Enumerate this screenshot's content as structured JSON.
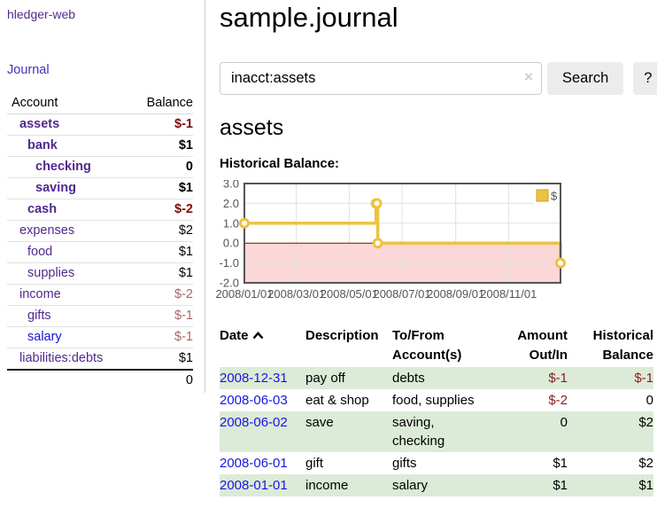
{
  "sidebar": {
    "app_title": "hledger-web",
    "nav": {
      "journal": "Journal"
    },
    "accounts": {
      "headers": {
        "account": "Account",
        "balance": "Balance"
      },
      "rows": [
        {
          "name": "assets",
          "indent": 0,
          "bold": true,
          "balance": "$-1",
          "balance_negative": true,
          "link_color": "purple"
        },
        {
          "name": "bank",
          "indent": 1,
          "bold": true,
          "balance": "$1",
          "balance_negative": false,
          "link_color": "purple"
        },
        {
          "name": "checking",
          "indent": 2,
          "bold": true,
          "balance": "0",
          "balance_negative": false,
          "link_color": "purple"
        },
        {
          "name": "saving",
          "indent": 2,
          "bold": true,
          "balance": "$1",
          "balance_negative": false,
          "link_color": "purple"
        },
        {
          "name": "cash",
          "indent": 1,
          "bold": true,
          "balance": "$-2",
          "balance_negative": true,
          "link_color": "purple"
        },
        {
          "name": "expenses",
          "indent": 0,
          "bold": false,
          "balance": "$2",
          "balance_negative": false,
          "link_color": "purple"
        },
        {
          "name": "food",
          "indent": 1,
          "bold": false,
          "balance": "$1",
          "balance_negative": false,
          "link_color": "purple"
        },
        {
          "name": "supplies",
          "indent": 1,
          "bold": false,
          "balance": "$1",
          "balance_negative": false,
          "link_color": "purple"
        },
        {
          "name": "income",
          "indent": 0,
          "bold": false,
          "balance": "$-2",
          "balance_negative": true,
          "link_color": "purple"
        },
        {
          "name": "gifts",
          "indent": 1,
          "bold": false,
          "balance": "$-1",
          "balance_negative": true,
          "link_color": "purple"
        },
        {
          "name": "salary",
          "indent": 1,
          "bold": false,
          "balance": "$-1",
          "balance_negative": true,
          "link_color": "blue"
        },
        {
          "name": "liabilities:debts",
          "indent": 0,
          "bold": false,
          "balance": "$1",
          "balance_negative": false,
          "link_color": "purple"
        }
      ],
      "total": "0"
    }
  },
  "main": {
    "title": "sample.journal",
    "search": {
      "value": "inacct:assets",
      "clear_icon": "×",
      "search_button": "Search",
      "help_button": "?"
    },
    "heading": "assets",
    "chart_title": "Historical Balance:"
  },
  "chart_data": {
    "type": "line",
    "title": "Historical Balance",
    "step": true,
    "legend": {
      "label": "$",
      "position": "top-right"
    },
    "x": [
      "2008-01-01",
      "2008-06-01",
      "2008-06-02",
      "2008-06-03",
      "2008-12-31"
    ],
    "x_days": [
      0,
      152,
      153,
      154,
      365
    ],
    "values": [
      1,
      2,
      2,
      0,
      -1
    ],
    "ylim": [
      -2,
      3
    ],
    "xlim_days": [
      0,
      365
    ],
    "y_ticks": [
      "3.0",
      "2.0",
      "1.0",
      "0.0",
      "-1.0",
      "-2.0"
    ],
    "x_ticks": [
      {
        "label": "2008/01/01",
        "day": 0
      },
      {
        "label": "2008/03/01",
        "day": 60
      },
      {
        "label": "2008/05/01",
        "day": 121
      },
      {
        "label": "2008/07/01",
        "day": 182
      },
      {
        "label": "2008/09/01",
        "day": 244
      },
      {
        "label": "2008/11/01",
        "day": 305
      }
    ],
    "grid": true,
    "colors": {
      "line": "#edc240",
      "point_fill": "#ffffff",
      "negative_fill": "#fbd7d7",
      "zero_line": "#8b0000",
      "grid": "#e0e0e0",
      "border": "#545454",
      "tick_text": "#545454",
      "legend_border": "#cda323"
    }
  },
  "register": {
    "headers": {
      "date": "Date",
      "description": "Description",
      "accounts": "To/From Account(s)",
      "amount": "Amount Out/In",
      "balance": "Historical Balance"
    },
    "rows": [
      {
        "date": "2008-12-31",
        "description": "pay off",
        "accounts": "debts",
        "amount": "$-1",
        "amount_negative": true,
        "balance": "$-1",
        "balance_negative": true
      },
      {
        "date": "2008-06-03",
        "description": "eat & shop",
        "accounts": "food, supplies",
        "amount": "$-2",
        "amount_negative": true,
        "balance": "0",
        "balance_negative": false
      },
      {
        "date": "2008-06-02",
        "description": "save",
        "accounts": "saving, checking",
        "amount": "0",
        "amount_negative": false,
        "balance": "$2",
        "balance_negative": false
      },
      {
        "date": "2008-06-01",
        "description": "gift",
        "accounts": "gifts",
        "amount": "$1",
        "amount_negative": false,
        "balance": "$2",
        "balance_negative": false
      },
      {
        "date": "2008-01-01",
        "description": "income",
        "accounts": "salary",
        "amount": "$1",
        "amount_negative": false,
        "balance": "$1",
        "balance_negative": false
      }
    ]
  }
}
